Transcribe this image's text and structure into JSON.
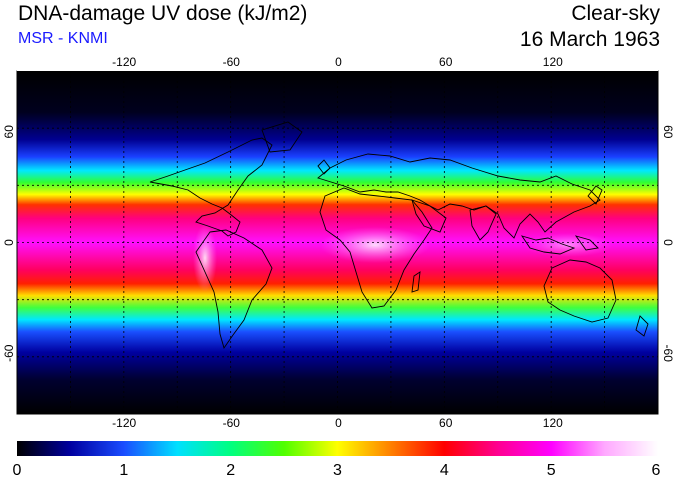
{
  "header": {
    "title": "DNA-damage UV dose (kJ/m2)",
    "source": "MSR - KNMI",
    "condition": "Clear-sky",
    "date": "16 March 1963"
  },
  "map": {
    "lon_ticks": [
      "-120",
      "-60",
      "0",
      "60",
      "120"
    ],
    "lat_ticks": [
      "60",
      "0",
      "-60"
    ],
    "lat_ticks_right": [
      "60",
      "0",
      "-60"
    ]
  },
  "colorbar": {
    "min": 0,
    "max": 6,
    "labels": [
      "0",
      "1",
      "2",
      "3",
      "4",
      "5",
      "6"
    ],
    "colors": [
      "#000000",
      "#0000a0",
      "#1a4dff",
      "#00e0ff",
      "#00ff80",
      "#50ff00",
      "#ffff00",
      "#ff8000",
      "#ff0000",
      "#ff0090",
      "#ff00ff",
      "#ffa8ff",
      "#ffffff"
    ]
  }
}
